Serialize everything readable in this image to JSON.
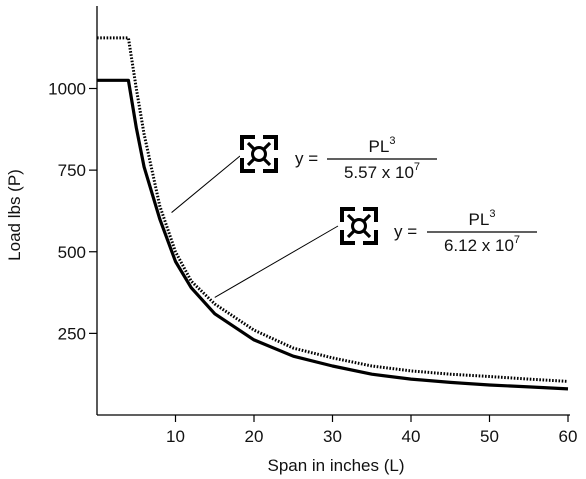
{
  "chart_data": {
    "type": "line",
    "xlabel": "Span in inches (L)",
    "ylabel": "Load lbs (P)",
    "xlim": [
      0,
      63
    ],
    "ylim": [
      0,
      1200
    ],
    "xticks": [
      10,
      20,
      30,
      40,
      50,
      60
    ],
    "yticks": [
      250,
      500,
      750,
      1000
    ],
    "grid": false,
    "series": [
      {
        "style": "dotted",
        "color": "#000000",
        "points": [
          [
            0,
            1155
          ],
          [
            4,
            1155
          ],
          [
            5,
            1000
          ],
          [
            6,
            860
          ],
          [
            8,
            640
          ],
          [
            10,
            500
          ],
          [
            12,
            410
          ],
          [
            15,
            340
          ],
          [
            20,
            260
          ],
          [
            25,
            205
          ],
          [
            30,
            175
          ],
          [
            35,
            150
          ],
          [
            40,
            135
          ],
          [
            45,
            125
          ],
          [
            50,
            118
          ],
          [
            55,
            110
          ],
          [
            60,
            103
          ]
        ]
      },
      {
        "style": "solid",
        "color": "#000000",
        "points": [
          [
            0,
            1025
          ],
          [
            4,
            1025
          ],
          [
            5,
            880
          ],
          [
            6,
            760
          ],
          [
            8,
            600
          ],
          [
            10,
            470
          ],
          [
            12,
            390
          ],
          [
            15,
            310
          ],
          [
            20,
            230
          ],
          [
            25,
            180
          ],
          [
            30,
            150
          ],
          [
            35,
            125
          ],
          [
            40,
            110
          ],
          [
            45,
            100
          ],
          [
            50,
            92
          ],
          [
            55,
            86
          ],
          [
            60,
            80
          ]
        ]
      }
    ],
    "annotations": [
      {
        "y_label": "y = ",
        "numerator": "PL",
        "numerator_exp": "3",
        "denominator": "5.57 x 10",
        "denominator_exp": "7",
        "leader_point": [
          9.5,
          620
        ]
      },
      {
        "y_label": "y = ",
        "numerator": "PL",
        "numerator_exp": "3",
        "denominator": "6.12 x 10",
        "denominator_exp": "7",
        "leader_point": [
          15,
          360
        ]
      }
    ]
  }
}
